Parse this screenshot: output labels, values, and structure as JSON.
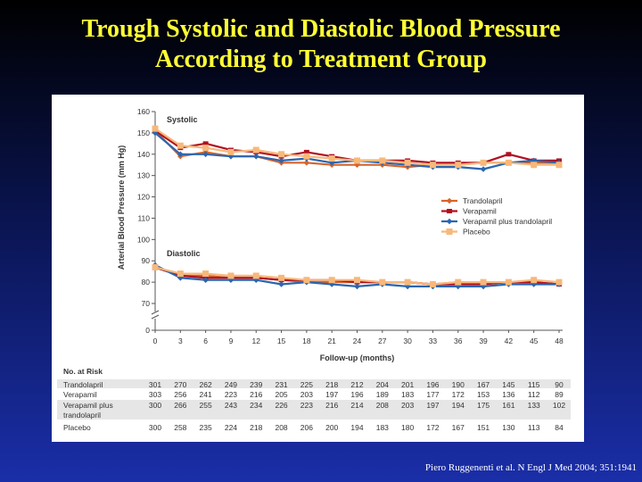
{
  "slide": {
    "title_line1": "Trough Systolic and Diastolic Blood Pressure",
    "title_line2": "According to Treatment Group",
    "citation": "Piero Ruggenenti et al. N Engl J Med 2004; 351:1941",
    "title_color": "#ffff33",
    "background_colors": [
      "#000000",
      "#1a2ea8"
    ]
  },
  "chart_data": {
    "type": "line",
    "xlabel": "Follow-up (months)",
    "ylabel": "Arterial Blood Pressure (mm Hg)",
    "x": [
      0,
      3,
      6,
      9,
      12,
      15,
      18,
      21,
      24,
      27,
      30,
      33,
      36,
      39,
      42,
      45,
      48
    ],
    "yticks_upper": [
      70,
      80,
      90,
      100,
      110,
      120,
      130,
      140,
      150,
      160
    ],
    "ytick_zero": 0,
    "ylim": [
      70,
      160
    ],
    "axis_break": true,
    "group_labels": {
      "systolic": "Systolic",
      "diastolic": "Diastolic"
    },
    "legend_position": "right-middle",
    "series": [
      {
        "name": "Trandolapril",
        "color": "#d8642a",
        "systolic": [
          151,
          139,
          141,
          139,
          139,
          136,
          136,
          135,
          135,
          135,
          134,
          135,
          135,
          136,
          136,
          136,
          136
        ],
        "diastolic": [
          87,
          83,
          83,
          82,
          82,
          81,
          80,
          80,
          80,
          80,
          80,
          79,
          80,
          80,
          80,
          80,
          79
        ]
      },
      {
        "name": "Verapamil",
        "color": "#b01020",
        "systolic": [
          151,
          143,
          145,
          142,
          141,
          139,
          141,
          139,
          137,
          137,
          137,
          136,
          136,
          136,
          140,
          137,
          137
        ],
        "diastolic": [
          87,
          83,
          82,
          82,
          82,
          81,
          81,
          81,
          80,
          80,
          80,
          79,
          79,
          79,
          80,
          80,
          79
        ]
      },
      {
        "name": "Verapamil plus trandolapril",
        "color": "#2a66b0",
        "systolic": [
          150,
          140,
          140,
          139,
          139,
          137,
          138,
          136,
          137,
          136,
          135,
          134,
          134,
          133,
          136,
          137,
          136
        ],
        "diastolic": [
          88,
          82,
          81,
          81,
          81,
          79,
          80,
          79,
          78,
          79,
          78,
          78,
          78,
          78,
          79,
          79,
          79
        ]
      },
      {
        "name": "Placebo",
        "color": "#f7b87a",
        "systolic": [
          152,
          144,
          143,
          141,
          142,
          140,
          139,
          138,
          137,
          137,
          136,
          135,
          135,
          136,
          136,
          135,
          135
        ],
        "diastolic": [
          87,
          84,
          84,
          83,
          83,
          82,
          81,
          81,
          81,
          80,
          80,
          79,
          80,
          80,
          80,
          81,
          80
        ]
      }
    ],
    "at_risk": {
      "title": "No. at Risk",
      "rows": [
        {
          "label": [
            "Trandolapril"
          ],
          "values": [
            301,
            270,
            262,
            249,
            239,
            231,
            225,
            218,
            212,
            204,
            201,
            196,
            190,
            167,
            145,
            115,
            90
          ]
        },
        {
          "label": [
            "Verapamil"
          ],
          "values": [
            303,
            256,
            241,
            223,
            216,
            205,
            203,
            197,
            196,
            189,
            183,
            177,
            172,
            153,
            136,
            112,
            89
          ]
        },
        {
          "label": [
            "Verapamil plus",
            "trandolapril"
          ],
          "values": [
            300,
            266,
            255,
            243,
            234,
            226,
            223,
            216,
            214,
            208,
            203,
            197,
            194,
            175,
            161,
            133,
            102
          ]
        },
        {
          "label": [
            "Placebo"
          ],
          "values": [
            300,
            258,
            235,
            224,
            218,
            208,
            206,
            200,
            194,
            183,
            180,
            172,
            167,
            151,
            130,
            113,
            84
          ]
        }
      ]
    }
  }
}
